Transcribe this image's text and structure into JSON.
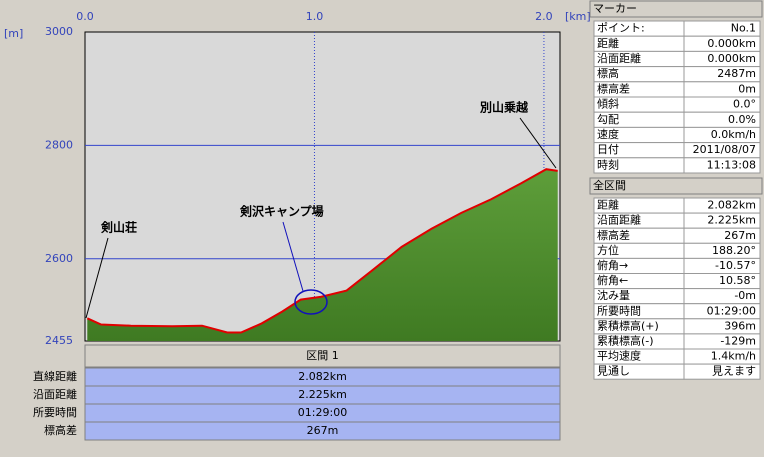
{
  "chart_data": {
    "type": "area",
    "x_unit": "[km]",
    "y_unit": "[m]",
    "x": [
      0.01,
      0.07,
      0.2,
      0.38,
      0.51,
      0.62,
      0.68,
      0.77,
      0.86,
      0.94,
      1.03,
      1.14,
      1.25,
      1.38,
      1.51,
      1.64,
      1.77,
      1.9,
      2.01,
      2.06
    ],
    "values": [
      2495,
      2484,
      2482,
      2481,
      2482,
      2470,
      2470,
      2486,
      2507,
      2528,
      2533,
      2544,
      2579,
      2621,
      2653,
      2681,
      2705,
      2733,
      2758,
      2755
    ],
    "xlim": [
      0,
      2.07
    ],
    "xticks": [
      {
        "value": 0,
        "label": "0.0"
      },
      {
        "value": 1,
        "label": "1.0"
      },
      {
        "value": 2,
        "label": "2.0"
      }
    ],
    "ylim": [
      2455,
      3000
    ],
    "yticks": [
      2455,
      2600,
      2800,
      3000
    ],
    "grid": true,
    "color": "#e00000",
    "fill_color": "#5e9e3a",
    "annotations": [
      "別山乗越",
      "剣沢キャンプ場",
      "剣山荘"
    ]
  },
  "marker_panel": {
    "title": "マーカー",
    "rows": [
      [
        "ポイント:",
        "No.1"
      ],
      [
        "距離",
        "0.000km"
      ],
      [
        "沿面距離",
        "0.000km"
      ],
      [
        "標高",
        "2487m"
      ],
      [
        "標高差",
        "0m"
      ],
      [
        "傾斜",
        "0.0°"
      ],
      [
        "勾配",
        "0.0%"
      ],
      [
        "速度",
        "0.0km/h"
      ],
      [
        "日付",
        "2011/08/07"
      ],
      [
        "時刻",
        "11:13:08"
      ]
    ]
  },
  "total_panel": {
    "title": "全区間",
    "rows": [
      [
        "距離",
        "2.082km"
      ],
      [
        "沿面距離",
        "2.225km"
      ],
      [
        "標高差",
        "267m"
      ],
      [
        "方位",
        "188.20°"
      ],
      [
        "俯角→",
        "-10.57°"
      ],
      [
        "俯角←",
        "10.58°"
      ],
      [
        "沈み量",
        "-0m"
      ],
      [
        "所要時間",
        "01:29:00"
      ],
      [
        "累積標高(+)",
        "396m"
      ],
      [
        "累積標高(-)",
        "-129m"
      ],
      [
        "平均速度",
        "1.4km/h"
      ],
      [
        "見通し",
        "見えます"
      ]
    ]
  },
  "section": {
    "title": "区間 1",
    "rows": [
      [
        "直線距離",
        "2.082km"
      ],
      [
        "沿面距離",
        "2.225km"
      ],
      [
        "所要時間",
        "01:29:00"
      ],
      [
        "標高差",
        "267m"
      ]
    ]
  }
}
